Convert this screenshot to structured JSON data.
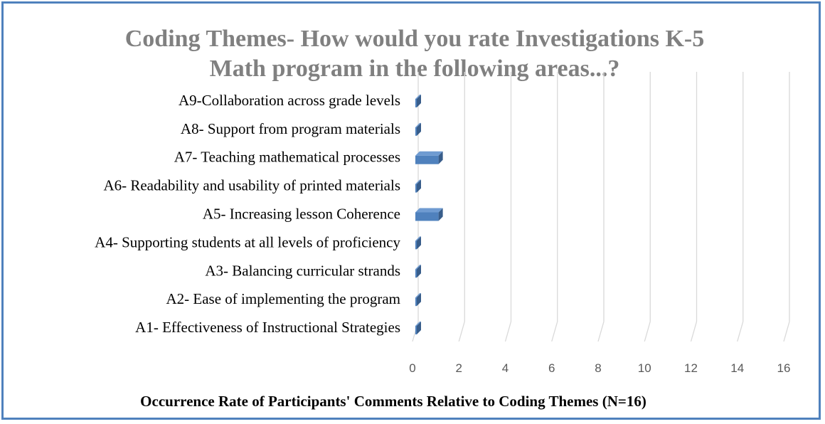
{
  "chart_data": {
    "type": "bar",
    "orientation": "horizontal",
    "title": "Coding Themes- How would you rate Investigations K-5 Math program in the following areas...?",
    "title_lines": [
      "Coding Themes- How would you rate Investigations K-5",
      "Math program in the following areas...?"
    ],
    "categories": [
      "A1- Effectiveness of Instructional Strategies",
      "A2- Ease of implementing the program",
      "A3- Balancing curricular strands",
      "A4- Supporting students at all levels of proficiency",
      "A5- Increasing lesson Coherence",
      "A6- Readability and usability of printed materials",
      "A7- Teaching mathematical processes",
      "A8- Support from program materials",
      "A9-Collaboration across grade levels"
    ],
    "values": [
      0,
      0,
      0,
      0,
      1,
      0,
      1,
      0,
      0
    ],
    "xlabel": "Occurrence Rate of Participants' Comments Relative to Coding Themes (N=16)",
    "ylabel": "",
    "xlim": [
      0,
      16
    ],
    "xticks": [
      "0",
      "2",
      "4",
      "6",
      "8",
      "10",
      "12",
      "14",
      "16"
    ],
    "grid": true,
    "style": "3d",
    "legend": false,
    "colors": {
      "bar": "#4f81bd",
      "bar_top": "#6f9bd1",
      "bar_side": "#385d8a",
      "grid": "#d9d9d9",
      "title": "#808080",
      "border": "#4f81bd"
    }
  }
}
